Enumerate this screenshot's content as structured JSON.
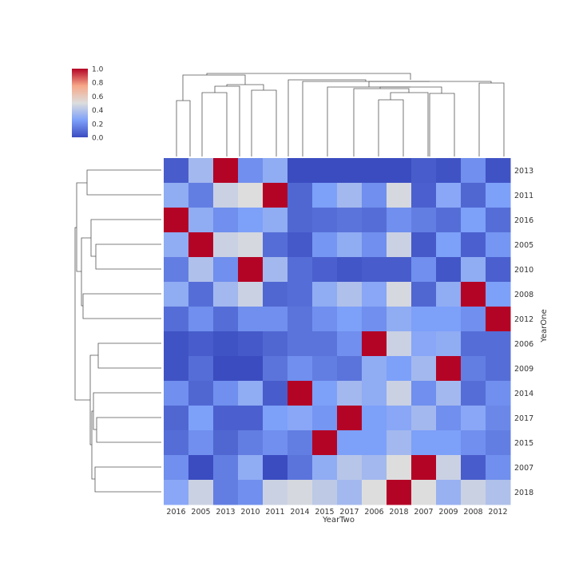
{
  "chart_data": {
    "type": "heatmap",
    "title": "",
    "xlabel": "YearTwo",
    "ylabel": "YearOne",
    "columns": [
      "2016",
      "2005",
      "2013",
      "2010",
      "2011",
      "2014",
      "2015",
      "2017",
      "2006",
      "2018",
      "2007",
      "2009",
      "2008",
      "2012"
    ],
    "rows": [
      "2013",
      "2011",
      "2016",
      "2005",
      "2010",
      "2008",
      "2012",
      "2006",
      "2009",
      "2014",
      "2017",
      "2015",
      "2007",
      "2018"
    ],
    "values": [
      [
        0.05,
        0.35,
        1.0,
        0.2,
        0.3,
        0.0,
        0.0,
        0.0,
        0.0,
        0.0,
        0.05,
        0.02,
        0.2,
        0.02
      ],
      [
        0.3,
        0.15,
        0.45,
        0.5,
        1.0,
        0.08,
        0.25,
        0.35,
        0.2,
        0.48,
        0.06,
        0.28,
        0.08,
        0.25
      ],
      [
        1.0,
        0.3,
        0.2,
        0.25,
        0.3,
        0.08,
        0.1,
        0.12,
        0.1,
        0.2,
        0.15,
        0.1,
        0.25,
        0.1
      ],
      [
        0.3,
        1.0,
        0.45,
        0.48,
        0.1,
        0.04,
        0.22,
        0.3,
        0.2,
        0.45,
        0.04,
        0.25,
        0.06,
        0.22
      ],
      [
        0.15,
        0.38,
        0.2,
        1.0,
        0.35,
        0.1,
        0.06,
        0.03,
        0.05,
        0.05,
        0.2,
        0.03,
        0.3,
        0.06
      ],
      [
        0.3,
        0.1,
        0.35,
        0.45,
        0.08,
        0.1,
        0.3,
        0.38,
        0.28,
        0.48,
        0.08,
        0.3,
        1.0,
        0.25
      ],
      [
        0.1,
        0.2,
        0.1,
        0.2,
        0.2,
        0.12,
        0.2,
        0.25,
        0.2,
        0.3,
        0.25,
        0.25,
        0.2,
        1.0
      ],
      [
        0.02,
        0.05,
        0.02,
        0.04,
        0.08,
        0.12,
        0.12,
        0.2,
        1.0,
        0.45,
        0.28,
        0.3,
        0.1,
        0.1
      ],
      [
        0.02,
        0.1,
        0.0,
        0.0,
        0.12,
        0.2,
        0.15,
        0.12,
        0.3,
        0.25,
        0.35,
        1.0,
        0.15,
        0.1
      ],
      [
        0.2,
        0.08,
        0.2,
        0.3,
        0.05,
        1.0,
        0.25,
        0.35,
        0.3,
        0.45,
        0.2,
        0.35,
        0.1,
        0.2
      ],
      [
        0.08,
        0.25,
        0.06,
        0.06,
        0.25,
        0.28,
        0.22,
        1.0,
        0.25,
        0.28,
        0.35,
        0.2,
        0.28,
        0.18
      ],
      [
        0.1,
        0.2,
        0.08,
        0.15,
        0.2,
        0.15,
        1.0,
        0.25,
        0.25,
        0.35,
        0.25,
        0.25,
        0.2,
        0.15
      ],
      [
        0.2,
        0.0,
        0.15,
        0.3,
        0.0,
        0.12,
        0.3,
        0.4,
        0.35,
        0.5,
        1.0,
        0.45,
        0.05,
        0.2
      ],
      [
        0.28,
        0.45,
        0.15,
        0.2,
        0.45,
        0.48,
        0.42,
        0.35,
        0.5,
        1.0,
        0.5,
        0.32,
        0.45,
        0.38
      ]
    ],
    "vmin": 0.0,
    "vmax": 1.0,
    "colormap": "coolwarm",
    "colorbar_ticks": [
      "0.0",
      "0.2",
      "0.4",
      "0.6",
      "0.8",
      "1.0"
    ],
    "grid": false,
    "dendrograms": [
      "top",
      "left"
    ]
  }
}
